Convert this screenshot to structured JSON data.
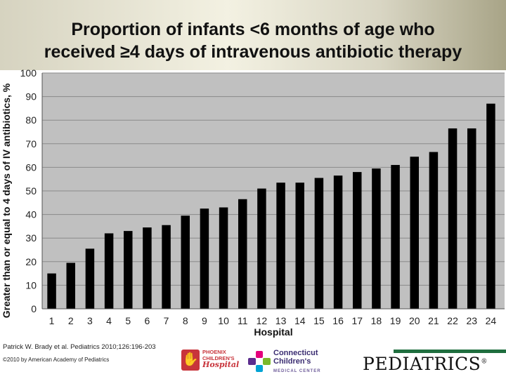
{
  "title": "Proportion of infants <6 months of age who\nreceived ≥4 days of intravenous antibiotic therapy",
  "chart_data": {
    "type": "bar",
    "categories": [
      "1",
      "2",
      "3",
      "4",
      "5",
      "6",
      "7",
      "8",
      "9",
      "10",
      "11",
      "12",
      "13",
      "14",
      "15",
      "16",
      "17",
      "18",
      "19",
      "20",
      "21",
      "22",
      "23",
      "24"
    ],
    "values": [
      15,
      19.5,
      25.5,
      32,
      33,
      34.5,
      35.5,
      39.5,
      42.5,
      43,
      46.5,
      51,
      53.5,
      53.5,
      55.5,
      56.5,
      58,
      59.5,
      61,
      64.5,
      66.5,
      76.5,
      76.5,
      87
    ],
    "xlabel": "Hospital",
    "ylabel": "Greater than or equal to 4 days of IV antibiotics, %",
    "ylim": [
      0,
      100
    ],
    "yticks": [
      0,
      10,
      20,
      30,
      40,
      50,
      60,
      70,
      80,
      90,
      100
    ],
    "grid": true,
    "colors": {
      "plot_bg": "#c0c0c0",
      "bar": "#000000",
      "grid": "#8a8a8a"
    }
  },
  "footer": {
    "citation": "Patrick W. Brady et al. Pediatrics 2010;126:196-203",
    "copyright": "©2010 by American Academy of Pediatrics",
    "logo_phoenix": "PHOENIX CHILDREN'S Hospital",
    "logo_ct": "Connecticut Children's MEDICAL CENTER",
    "logo_pediatrics": "PEDIATRICS"
  }
}
